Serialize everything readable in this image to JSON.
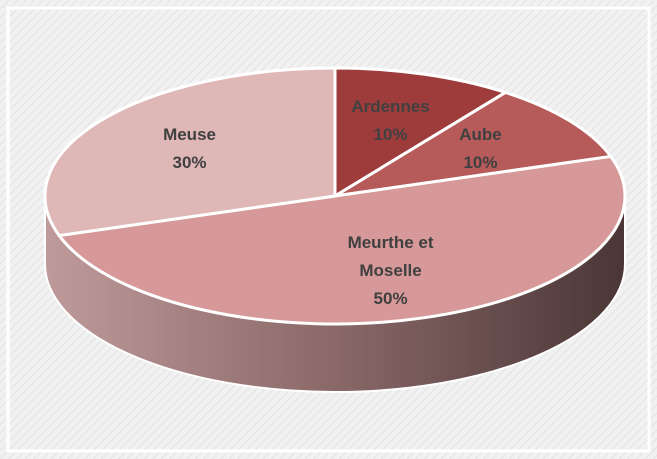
{
  "chart_data": {
    "type": "pie",
    "categories": [
      "Ardennes",
      "Aube",
      "Meurthe et Moselle",
      "Meuse"
    ],
    "values": [
      10,
      10,
      50,
      30
    ],
    "value_labels": [
      "10%",
      "10%",
      "50%",
      "30%"
    ],
    "colors": [
      "#9e3c3c",
      "#b65a5a",
      "#d69898",
      "#dfb7b7"
    ]
  }
}
